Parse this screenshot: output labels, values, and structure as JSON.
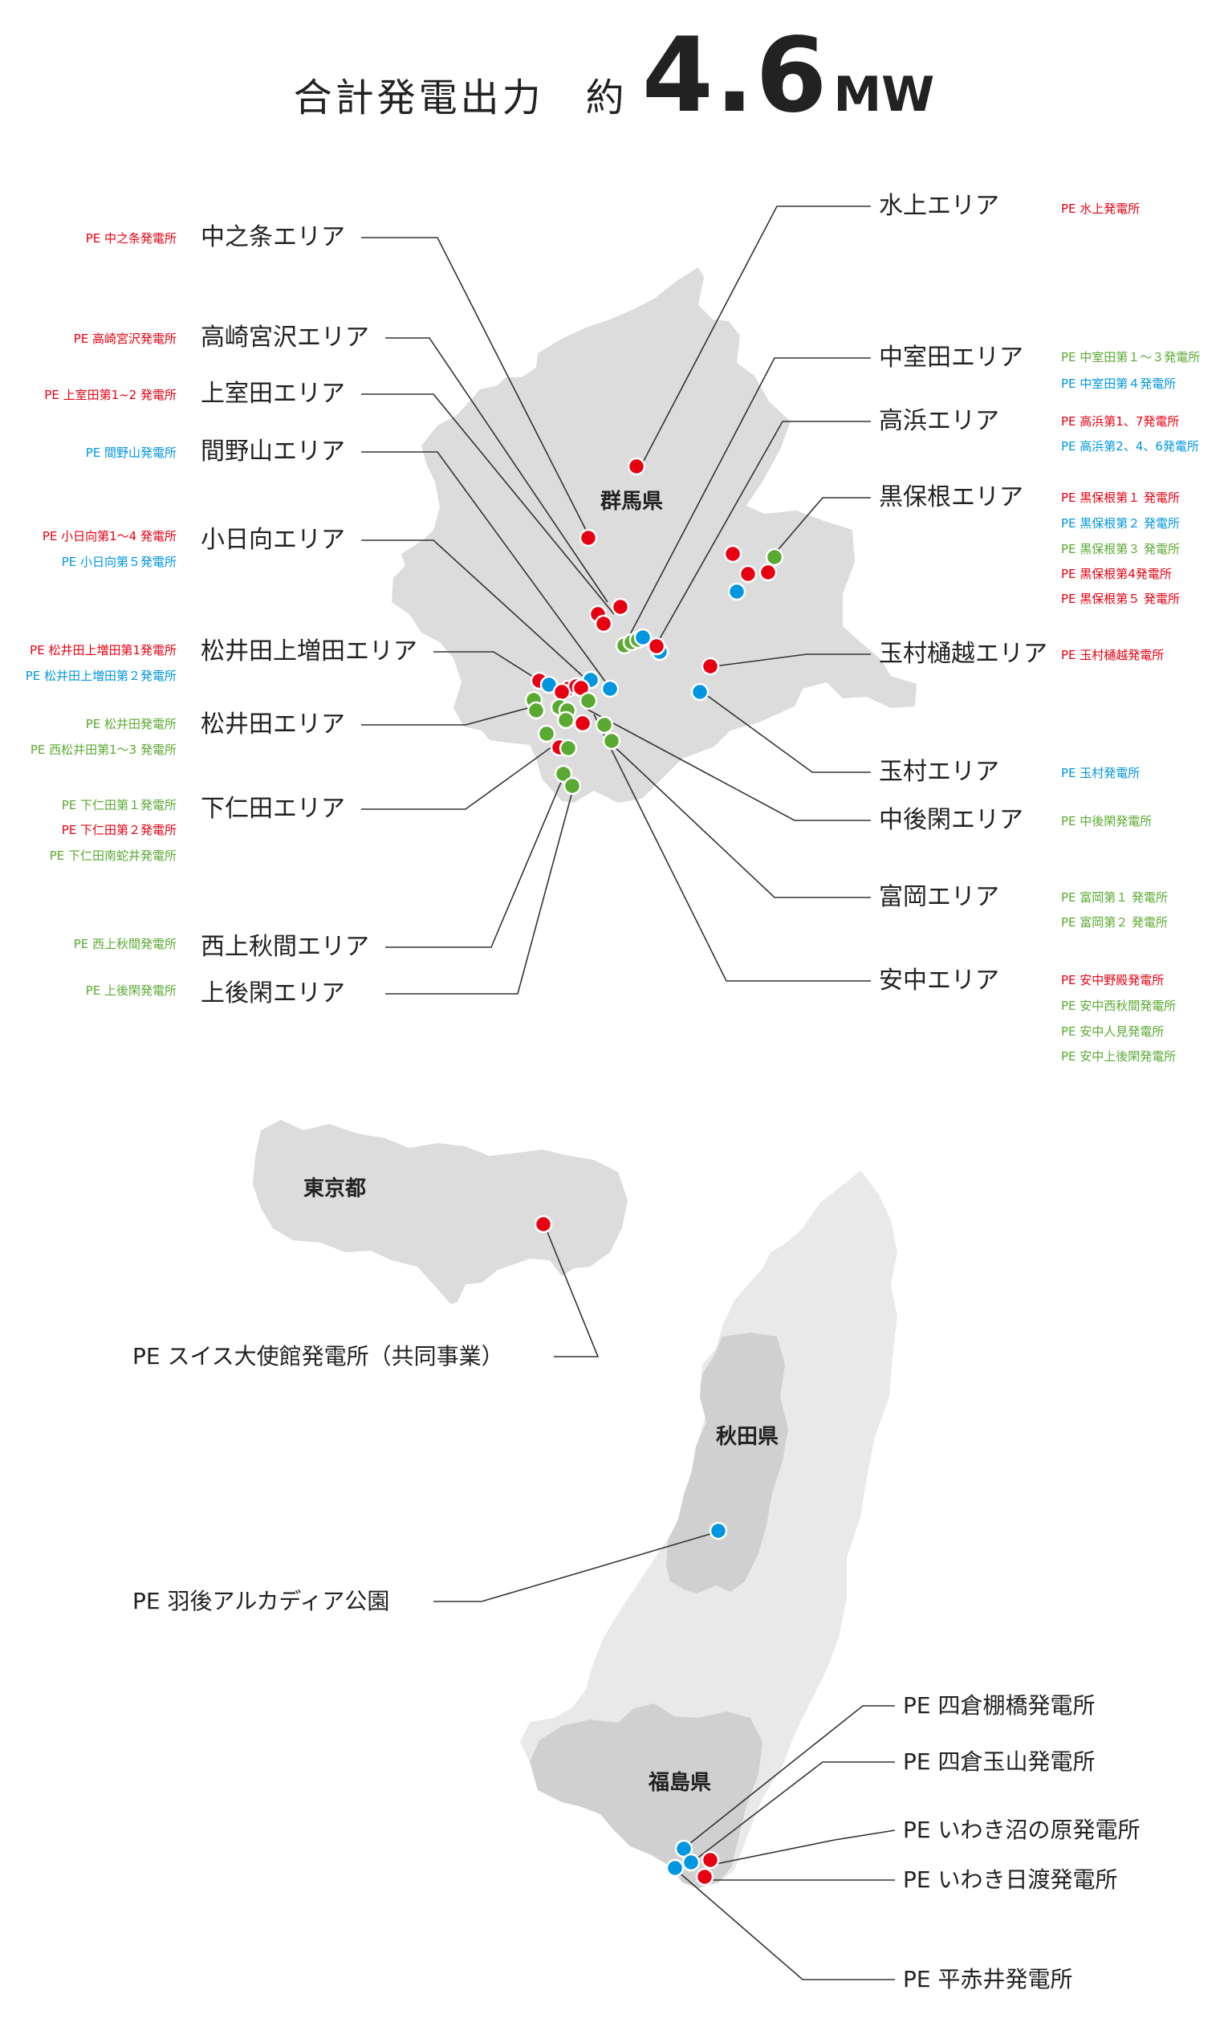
{
  "header": {
    "label": "合計発電出力　約",
    "value": "4.6",
    "unit": "MW"
  },
  "colors": {
    "red": "#e60012",
    "blue": "#0096e0",
    "green": "#5aaa32",
    "land": "#dcdcdc",
    "land_light": "#e9e9e9",
    "line": "#333333"
  },
  "prefectures": {
    "gunma": "群馬県",
    "tokyo": "東京都",
    "akita": "秋田県",
    "fukushima": "福島県"
  },
  "areas": {
    "nakanojo": {
      "name": "中之条エリア",
      "plants": [
        {
          "name": "PE 中之条発電所",
          "color": "red"
        }
      ]
    },
    "takasaki_miyazawa": {
      "name": "高崎宮沢エリア",
      "plants": [
        {
          "name": "PE 高崎宮沢発電所",
          "color": "red"
        }
      ]
    },
    "kamimuroda": {
      "name": "上室田エリア",
      "plants": [
        {
          "name": "PE 上室田第1~2 発電所",
          "color": "red"
        }
      ]
    },
    "mayama": {
      "name": "間野山エリア",
      "plants": [
        {
          "name": "PE 間野山発電所",
          "color": "blue"
        }
      ]
    },
    "kohinata": {
      "name": "小日向エリア",
      "plants": [
        {
          "name": "PE 小日向第1～4 発電所",
          "color": "red"
        },
        {
          "name": "PE 小日向第５発電所",
          "color": "blue"
        }
      ]
    },
    "matsuida_kamimasuda": {
      "name": "松井田上増田エリア",
      "plants": [
        {
          "name": "PE 松井田上増田第1発電所",
          "color": "red"
        },
        {
          "name": "PE 松井田上増田第２発電所",
          "color": "blue"
        }
      ]
    },
    "matsuida": {
      "name": "松井田エリア",
      "plants": [
        {
          "name": "PE 松井田発電所",
          "color": "green"
        },
        {
          "name": "PE 西松井田第1～3 発電所",
          "color": "green"
        }
      ]
    },
    "shimonita": {
      "name": "下仁田エリア",
      "plants": [
        {
          "name": "PE 下仁田第１発電所",
          "color": "green"
        },
        {
          "name": "PE 下仁田第２発電所",
          "color": "red"
        },
        {
          "name": "PE 下仁田南蛇井発電所",
          "color": "green"
        }
      ]
    },
    "nishikamiakima": {
      "name": "西上秋間エリア",
      "plants": [
        {
          "name": "PE 西上秋間発電所",
          "color": "green"
        }
      ]
    },
    "kamigokan": {
      "name": "上後閑エリア",
      "plants": [
        {
          "name": "PE 上後閑発電所",
          "color": "green"
        }
      ]
    },
    "minakami": {
      "name": "水上エリア",
      "plants": [
        {
          "name": "PE 水上発電所",
          "color": "red"
        }
      ]
    },
    "nakamuroda": {
      "name": "中室田エリア",
      "plants": [
        {
          "name": "PE 中室田第１～３発電所",
          "color": "green"
        },
        {
          "name": "PE 中室田第４発電所",
          "color": "blue"
        }
      ]
    },
    "takahama": {
      "name": "高浜エリア",
      "plants": [
        {
          "name": "PE 高浜第1、7発電所",
          "color": "red"
        },
        {
          "name": "PE 高浜第2、4、6発電所",
          "color": "blue"
        }
      ]
    },
    "kurohone": {
      "name": "黒保根エリア",
      "plants": [
        {
          "name": "PE 黒保根第１ 発電所",
          "color": "red"
        },
        {
          "name": "PE 黒保根第２ 発電所",
          "color": "blue"
        },
        {
          "name": "PE 黒保根第３ 発電所",
          "color": "green"
        },
        {
          "name": "PE 黒保根第4発電所",
          "color": "red"
        },
        {
          "name": "PE 黒保根第５ 発電所",
          "color": "red"
        }
      ]
    },
    "tamamura_hikoshi": {
      "name": "玉村樋越エリア",
      "plants": [
        {
          "name": "PE 玉村樋越発電所",
          "color": "red"
        }
      ]
    },
    "tamamura": {
      "name": "玉村エリア",
      "plants": [
        {
          "name": "PE 玉村発電所",
          "color": "blue"
        }
      ]
    },
    "nakagokan": {
      "name": "中後閑エリア",
      "plants": [
        {
          "name": "PE 中後閑発電所",
          "color": "green"
        }
      ]
    },
    "tomioka": {
      "name": "富岡エリア",
      "plants": [
        {
          "name": "PE 富岡第１ 発電所",
          "color": "green"
        },
        {
          "name": "PE 富岡第２ 発電所",
          "color": "green"
        }
      ]
    },
    "annaka": {
      "name": "安中エリア",
      "plants": [
        {
          "name": "PE 安中野殿発電所",
          "color": "red"
        },
        {
          "name": "PE 安中西秋間発電所",
          "color": "green"
        },
        {
          "name": "PE 安中人見発電所",
          "color": "green"
        },
        {
          "name": "PE 安中上後閑発電所",
          "color": "green"
        }
      ]
    }
  },
  "sites": {
    "swiss": {
      "name": "PE スイス大使館発電所（共同事業）",
      "color": "red"
    },
    "ugo": {
      "name": "PE 羽後アルカディア公園",
      "color": "blue"
    },
    "yotsukura_tanahashi": {
      "name": "PE 四倉棚橋発電所",
      "color": "blue"
    },
    "yotsukura_tamayama": {
      "name": "PE 四倉玉山発電所",
      "color": "blue"
    },
    "iwaki_numanohara": {
      "name": "PE いわき沼の原発電所",
      "color": "red"
    },
    "iwaki_hiwatari": {
      "name": "PE いわき日渡発電所",
      "color": "red"
    },
    "hiraakai": {
      "name": "PE 平赤井発電所",
      "color": "blue"
    }
  }
}
